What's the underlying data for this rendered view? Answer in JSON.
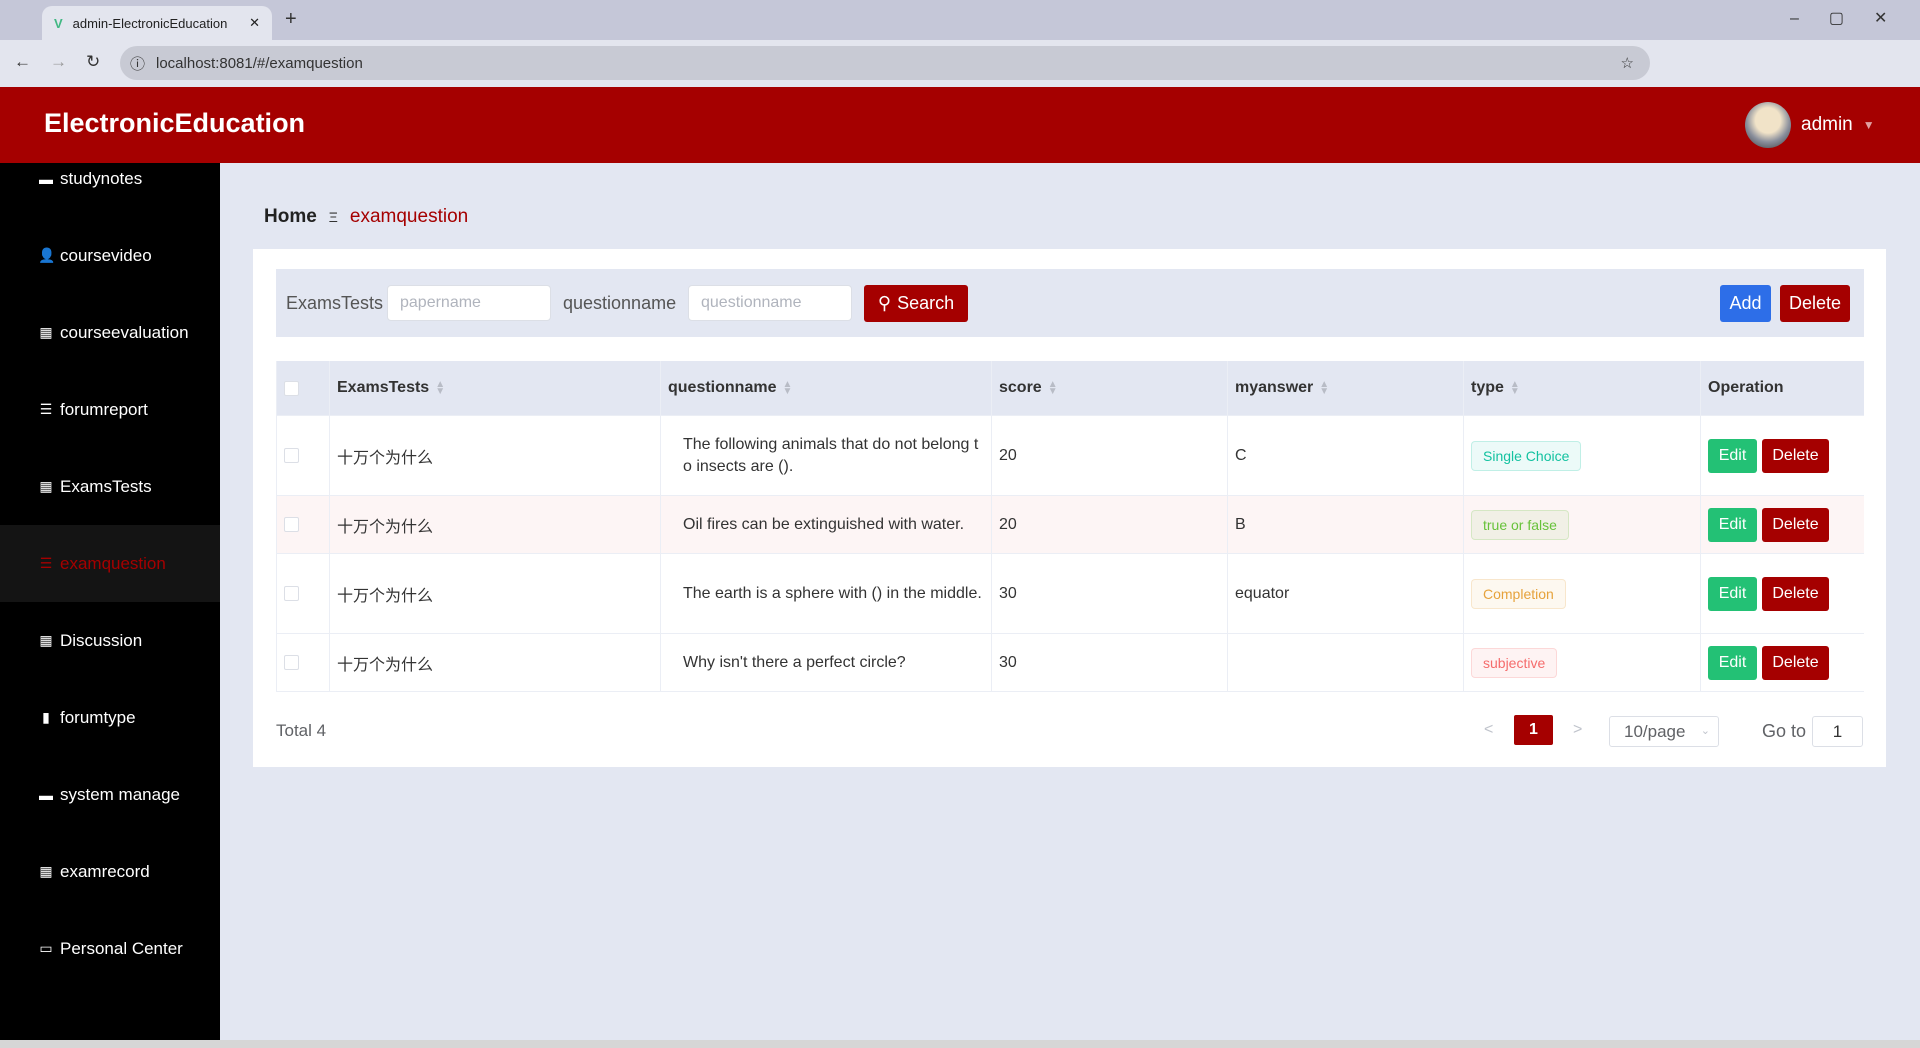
{
  "browser": {
    "tab_title": "admin-ElectronicEducation",
    "url": "localhost:8081/#/examquestion"
  },
  "header": {
    "brand": "ElectronicEducation",
    "user": "admin"
  },
  "sidebar": {
    "items": [
      {
        "label": "studynotes",
        "icon": "▬"
      },
      {
        "label": "coursevideo",
        "icon": "👤"
      },
      {
        "label": "courseevaluation",
        "icon": "▦"
      },
      {
        "label": "forumreport",
        "icon": "☰"
      },
      {
        "label": "ExamsTests",
        "icon": "▦"
      },
      {
        "label": "examquestion",
        "icon": "☰",
        "active": true
      },
      {
        "label": "Discussion",
        "icon": "▦"
      },
      {
        "label": "forumtype",
        "icon": "▮"
      },
      {
        "label": "system manage",
        "icon": "▬"
      },
      {
        "label": "examrecord",
        "icon": "▦"
      },
      {
        "label": "Personal Center",
        "icon": "▭"
      }
    ]
  },
  "breadcrumb": {
    "home": "Home",
    "sep": "Ξ",
    "current": "examquestion"
  },
  "search": {
    "label1": "ExamsTests",
    "placeholder1": "papername",
    "label2": "questionname",
    "placeholder2": "questionname",
    "search_label": "Search",
    "add_label": "Add",
    "delete_label": "Delete"
  },
  "table": {
    "headers": [
      "ExamsTests",
      "questionname",
      "score",
      "myanswer",
      "type",
      "Operation"
    ],
    "rows": [
      {
        "exam": "十万个为什么",
        "question": "The following animals that do not belong to insects are ().",
        "score": "20",
        "answer": "C",
        "type": "Single Choice",
        "type_color": "#13c2a0"
      },
      {
        "exam": "十万个为什么",
        "question": "Oil fires can be extinguished with water.",
        "score": "20",
        "answer": "B",
        "type": "true or false",
        "type_color": "#67c23a"
      },
      {
        "exam": "十万个为什么",
        "question": "The earth is a sphere with () in the middle.",
        "score": "30",
        "answer": "equator",
        "type": "Completion",
        "type_color": "#e6a23c"
      },
      {
        "exam": "十万个为什么",
        "question": "Why isn't there a perfect circle?",
        "score": "30",
        "answer": "",
        "type": "subjective",
        "type_color": "#f56c6c"
      }
    ],
    "edit_label": "Edit",
    "delete_label": "Delete"
  },
  "pagination": {
    "total": "Total 4",
    "current_page": "1",
    "page_size": "10/page",
    "goto_label": "Go to",
    "goto_value": "1"
  },
  "colors": {
    "brand": "#a50000",
    "edit": "#23c175",
    "add": "#2d6ee8"
  }
}
